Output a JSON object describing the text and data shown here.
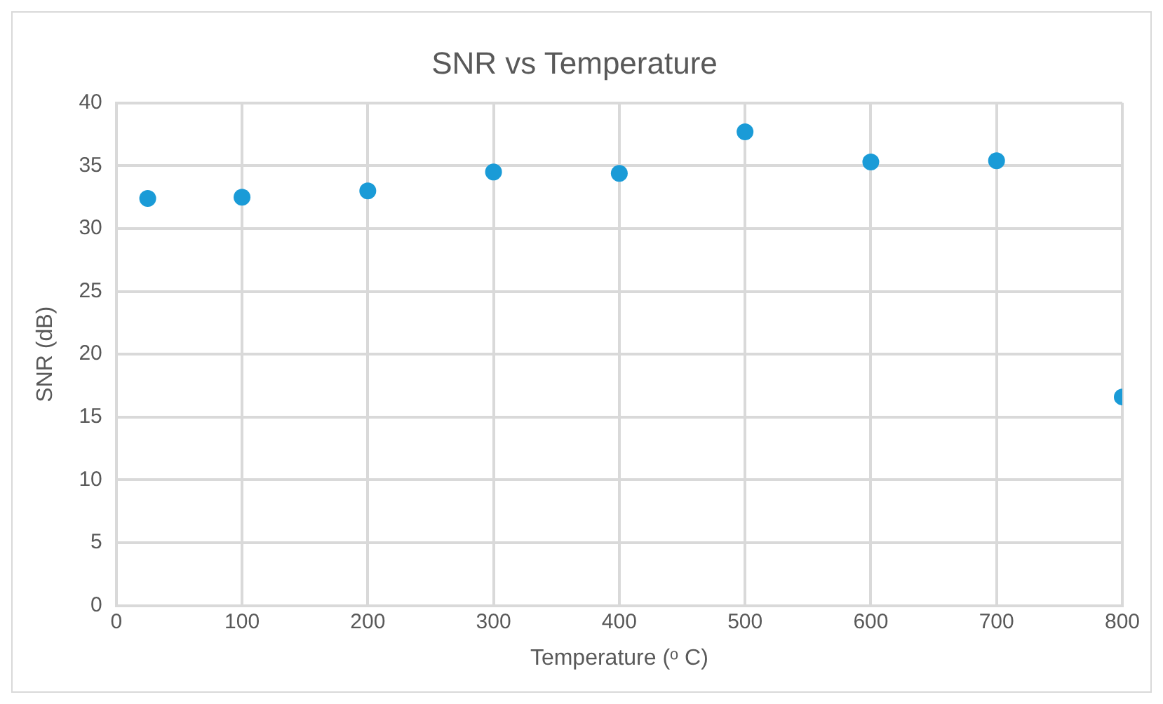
{
  "chart_data": {
    "type": "scatter",
    "title": "SNR vs Temperature",
    "xlabel": "Temperature (ᵒ C)",
    "ylabel": "SNR (dB)",
    "x": [
      25,
      100,
      200,
      300,
      400,
      500,
      600,
      700,
      800
    ],
    "series": [
      {
        "color": "#1a9bd7",
        "values": [
          32.4,
          32.5,
          33.0,
          34.5,
          34.4,
          37.7,
          35.3,
          35.4,
          16.6
        ]
      }
    ],
    "xlim": [
      0,
      800
    ],
    "xticks": [
      0,
      100,
      200,
      300,
      400,
      500,
      600,
      700,
      800
    ],
    "ylim": [
      0,
      40
    ],
    "yticks": [
      0,
      5,
      10,
      15,
      20,
      25,
      30,
      35,
      40
    ],
    "grid": true,
    "legend": false,
    "marker": "circle"
  }
}
